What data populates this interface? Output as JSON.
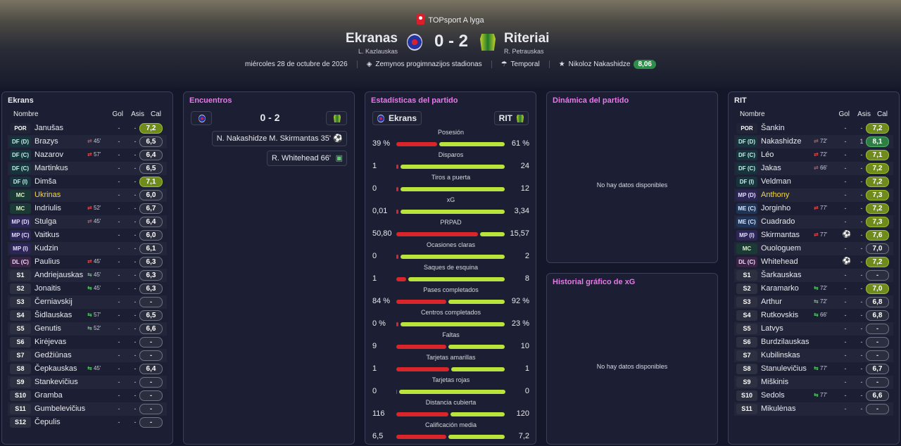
{
  "header": {
    "competition": "TOPsport A lyga",
    "home": {
      "name": "Ekranas",
      "coach": "L. Kazlauskas"
    },
    "away": {
      "name": "Riteriai",
      "coach": "R. Petrauskas"
    },
    "score": "0 - 2",
    "date": "miércoles 28 de octubre de 2026",
    "stadium": "Zemynos progimnazijos stadionas",
    "weather": "Temporal",
    "mvp_name": "Nikoloz Nakashidze",
    "mvp_rating": "8,06",
    "colors": {
      "mvp_badge": "#2e8e49",
      "home_bar": "#d9262a",
      "away_bar": "#b9e43c"
    }
  },
  "home_lineup": {
    "title": "Ekrans",
    "headers": {
      "name": "Nombre",
      "gol": "Gol",
      "asis": "Asis",
      "cal": "Cal"
    },
    "players": [
      {
        "pos": "POR",
        "posType": "g",
        "name": "Janušas",
        "sub": "",
        "subType": "",
        "gol": "-",
        "asis": "-",
        "cal": "7,2",
        "calType": "lime"
      },
      {
        "pos": "DF (D)",
        "posType": "d",
        "name": "Brazys",
        "sub": "45'",
        "subType": "out",
        "gol": "-",
        "asis": "-",
        "cal": "6,5",
        "calType": ""
      },
      {
        "pos": "DF (C)",
        "posType": "d",
        "name": "Nazarov",
        "sub": "57'",
        "subType": "out",
        "gol": "-",
        "asis": "-",
        "cal": "6,4",
        "calType": ""
      },
      {
        "pos": "DF (C)",
        "posType": "d",
        "name": "Martinkus",
        "sub": "",
        "subType": "",
        "gol": "-",
        "asis": "-",
        "cal": "6,5",
        "calType": ""
      },
      {
        "pos": "DF (I)",
        "posType": "d",
        "name": "Dimša",
        "sub": "",
        "subType": "",
        "gol": "-",
        "asis": "-",
        "cal": "7,1",
        "calType": "lime"
      },
      {
        "pos": "MC",
        "posType": "m",
        "name": "Ukrinas",
        "yellow": true,
        "sub": "",
        "subType": "",
        "gol": "-",
        "asis": "-",
        "cal": "6,0",
        "calType": ""
      },
      {
        "pos": "MC",
        "posType": "m",
        "name": "Indriulis",
        "sub": "52'",
        "subType": "out",
        "gol": "-",
        "asis": "-",
        "cal": "6,7",
        "calType": ""
      },
      {
        "pos": "MP (D)",
        "posType": "mp",
        "name": "Stulga",
        "sub": "45'",
        "subType": "out",
        "gol": "-",
        "asis": "-",
        "cal": "6,4",
        "calType": ""
      },
      {
        "pos": "MP (C)",
        "posType": "mp",
        "name": "Vaitkus",
        "sub": "",
        "subType": "",
        "gol": "-",
        "asis": "-",
        "cal": "6,0",
        "calType": ""
      },
      {
        "pos": "MP (I)",
        "posType": "mp",
        "name": "Kudzin",
        "sub": "",
        "subType": "",
        "gol": "-",
        "asis": "-",
        "cal": "6,1",
        "calType": ""
      },
      {
        "pos": "DL (C)",
        "posType": "dl",
        "name": "Paulius",
        "sub": "45'",
        "subType": "out",
        "gol": "-",
        "asis": "-",
        "cal": "6,3",
        "calType": ""
      },
      {
        "pos": "S1",
        "posType": "s",
        "name": "Andriejauskas",
        "sub": "45'",
        "subType": "in",
        "gol": "-",
        "asis": "-",
        "cal": "6,3",
        "calType": ""
      },
      {
        "pos": "S2",
        "posType": "s",
        "name": "Jonaitis",
        "sub": "45'",
        "subType": "in",
        "gol": "-",
        "asis": "-",
        "cal": "6,3",
        "calType": ""
      },
      {
        "pos": "S3",
        "posType": "s",
        "name": "Černiavskij",
        "sub": "",
        "subType": "",
        "gol": "-",
        "asis": "-",
        "cal": "-",
        "calType": "dash"
      },
      {
        "pos": "S4",
        "posType": "s",
        "name": "Šidlauskas",
        "sub": "57'",
        "subType": "in",
        "gol": "-",
        "asis": "-",
        "cal": "6,5",
        "calType": ""
      },
      {
        "pos": "S5",
        "posType": "s",
        "name": "Genutis",
        "sub": "52'",
        "subType": "in",
        "gol": "-",
        "asis": "-",
        "cal": "6,6",
        "calType": ""
      },
      {
        "pos": "S6",
        "posType": "s",
        "name": "Kirėjevas",
        "sub": "",
        "subType": "",
        "gol": "-",
        "asis": "-",
        "cal": "-",
        "calType": "dash"
      },
      {
        "pos": "S7",
        "posType": "s",
        "name": "Gedžiūnas",
        "sub": "",
        "subType": "",
        "gol": "-",
        "asis": "-",
        "cal": "-",
        "calType": "dash"
      },
      {
        "pos": "S8",
        "posType": "s",
        "name": "Čepkauskas",
        "sub": "45'",
        "subType": "in",
        "gol": "-",
        "asis": "-",
        "cal": "6,4",
        "calType": ""
      },
      {
        "pos": "S9",
        "posType": "s",
        "name": "Stankevičius",
        "sub": "",
        "subType": "",
        "gol": "-",
        "asis": "-",
        "cal": "-",
        "calType": "dash"
      },
      {
        "pos": "S10",
        "posType": "s",
        "name": "Gramba",
        "sub": "",
        "subType": "",
        "gol": "-",
        "asis": "-",
        "cal": "-",
        "calType": "dash"
      },
      {
        "pos": "S11",
        "posType": "s",
        "name": "Gumbelevičius",
        "sub": "",
        "subType": "",
        "gol": "-",
        "asis": "-",
        "cal": "-",
        "calType": "dash"
      },
      {
        "pos": "S12",
        "posType": "s",
        "name": "Čepulis",
        "sub": "",
        "subType": "",
        "gol": "-",
        "asis": "-",
        "cal": "-",
        "calType": "dash"
      }
    ]
  },
  "away_lineup": {
    "title": "RIT",
    "headers": {
      "name": "Nombre",
      "gol": "Gol",
      "asis": "Asis",
      "cal": "Cal"
    },
    "players": [
      {
        "pos": "POR",
        "posType": "g",
        "name": "Šankin",
        "sub": "",
        "subType": "",
        "gol": "-",
        "asis": "-",
        "cal": "7,2",
        "calType": "lime"
      },
      {
        "pos": "DF (D)",
        "posType": "d",
        "name": "Nakashidze",
        "sub": "72'",
        "subType": "out",
        "gol": "-",
        "asis": "1",
        "cal": "8,1",
        "calType": "green"
      },
      {
        "pos": "DF (C)",
        "posType": "d",
        "name": "Léo",
        "sub": "72'",
        "subType": "out",
        "gol": "-",
        "asis": "-",
        "cal": "7,1",
        "calType": "lime"
      },
      {
        "pos": "DF (C)",
        "posType": "d",
        "name": "Jakas",
        "sub": "66'",
        "subType": "out",
        "gol": "-",
        "asis": "-",
        "cal": "7,2",
        "calType": "lime"
      },
      {
        "pos": "DF (I)",
        "posType": "d",
        "name": "Veldman",
        "sub": "",
        "subType": "",
        "gol": "-",
        "asis": "-",
        "cal": "7,2",
        "calType": "lime"
      },
      {
        "pos": "MP (D)",
        "posType": "mp",
        "name": "Anthony",
        "yellow": true,
        "sub": "",
        "subType": "",
        "gol": "-",
        "asis": "-",
        "cal": "7,3",
        "calType": "lime"
      },
      {
        "pos": "ME (C)",
        "posType": "me",
        "name": "Jorginho",
        "sub": "77'",
        "subType": "out",
        "gol": "-",
        "asis": "-",
        "cal": "7,2",
        "calType": "lime"
      },
      {
        "pos": "ME (C)",
        "posType": "me",
        "name": "Cuadrado",
        "sub": "",
        "subType": "",
        "gol": "-",
        "asis": "-",
        "cal": "7,3",
        "calType": "lime"
      },
      {
        "pos": "MP (I)",
        "posType": "mp",
        "name": "Skirmantas",
        "sub": "77'",
        "subType": "out",
        "goal": true,
        "gol": "",
        "asis": "-",
        "cal": "7,6",
        "calType": "lime"
      },
      {
        "pos": "MC",
        "posType": "m",
        "name": "Ouologuem",
        "sub": "",
        "subType": "",
        "gol": "-",
        "asis": "-",
        "cal": "7,0",
        "calType": ""
      },
      {
        "pos": "DL (C)",
        "posType": "dl",
        "name": "Whitehead",
        "sub": "",
        "subType": "",
        "goal": true,
        "gol": "",
        "asis": "-",
        "cal": "7,2",
        "calType": "lime"
      },
      {
        "pos": "S1",
        "posType": "s",
        "name": "Šarkauskas",
        "sub": "",
        "subType": "",
        "gol": "-",
        "asis": "-",
        "cal": "-",
        "calType": "dash"
      },
      {
        "pos": "S2",
        "posType": "s",
        "name": "Karamarko",
        "sub": "72'",
        "subType": "in",
        "gol": "-",
        "asis": "-",
        "cal": "7,0",
        "calType": "lime"
      },
      {
        "pos": "S3",
        "posType": "s",
        "name": "Arthur",
        "sub": "72'",
        "subType": "in",
        "gol": "-",
        "asis": "-",
        "cal": "6,8",
        "calType": ""
      },
      {
        "pos": "S4",
        "posType": "s",
        "name": "Rutkovskis",
        "sub": "66'",
        "subType": "in",
        "gol": "-",
        "asis": "-",
        "cal": "6,8",
        "calType": ""
      },
      {
        "pos": "S5",
        "posType": "s",
        "name": "Latvys",
        "sub": "",
        "subType": "",
        "gol": "-",
        "asis": "-",
        "cal": "-",
        "calType": "dash"
      },
      {
        "pos": "S6",
        "posType": "s",
        "name": "Burdzilauskas",
        "sub": "",
        "subType": "",
        "gol": "-",
        "asis": "-",
        "cal": "-",
        "calType": "dash"
      },
      {
        "pos": "S7",
        "posType": "s",
        "name": "Kubilinskas",
        "sub": "",
        "subType": "",
        "gol": "-",
        "asis": "-",
        "cal": "-",
        "calType": "dash"
      },
      {
        "pos": "S8",
        "posType": "s",
        "name": "Stanulevičius",
        "sub": "77'",
        "subType": "in",
        "gol": "-",
        "asis": "-",
        "cal": "6,7",
        "calType": ""
      },
      {
        "pos": "S9",
        "posType": "s",
        "name": "Miškinis",
        "sub": "",
        "subType": "",
        "gol": "-",
        "asis": "-",
        "cal": "-",
        "calType": "dash"
      },
      {
        "pos": "S10",
        "posType": "s",
        "name": "Sedols",
        "sub": "77'",
        "subType": "in",
        "gol": "-",
        "asis": "-",
        "cal": "6,6",
        "calType": ""
      },
      {
        "pos": "S11",
        "posType": "s",
        "name": "Mikulėnas",
        "sub": "",
        "subType": "",
        "gol": "-",
        "asis": "-",
        "cal": "-",
        "calType": "dash"
      }
    ]
  },
  "encounters": {
    "title": "Encuentros",
    "score": "0 - 2",
    "events": [
      {
        "text": "N. Nakashidze M. Skirmantas 35'",
        "icon": "goal-ball-icon"
      },
      {
        "text": "R. Whitehead 66'",
        "icon": "goal-net-icon"
      }
    ]
  },
  "stats": {
    "title": "Estadísticas del partido",
    "home_label": "Ekrans",
    "away_label": "RIT",
    "rows": [
      {
        "label": "Posesión",
        "home": "39 %",
        "away": "61 %",
        "hv": 39,
        "av": 61
      },
      {
        "label": "Disparos",
        "home": "1",
        "away": "24",
        "hv": 1,
        "av": 24
      },
      {
        "label": "Tiros a puerta",
        "home": "0",
        "away": "12",
        "hv": 0,
        "av": 12
      },
      {
        "label": "xG",
        "home": "0,01",
        "away": "3,34",
        "hv": 0.01,
        "av": 3.34
      },
      {
        "label": "PRPAD",
        "home": "50,80",
        "away": "15,57",
        "hv": 50.8,
        "av": 15.57
      },
      {
        "label": "Ocasiones claras",
        "home": "0",
        "away": "2",
        "hv": 0,
        "av": 2
      },
      {
        "label": "Saques de esquina",
        "home": "1",
        "away": "8",
        "hv": 1,
        "av": 8
      },
      {
        "label": "Pases completados",
        "home": "84 %",
        "away": "92 %",
        "hv": 84,
        "av": 92
      },
      {
        "label": "Centros completados",
        "home": "0 %",
        "away": "23 %",
        "hv": 0,
        "av": 23
      },
      {
        "label": "Faltas",
        "home": "9",
        "away": "10",
        "hv": 9,
        "av": 10
      },
      {
        "label": "Tarjetas amarillas",
        "home": "1",
        "away": "1",
        "hv": 1,
        "av": 1
      },
      {
        "label": "Tarjetas rojas",
        "home": "0",
        "away": "0",
        "hv": 0,
        "av": 0
      },
      {
        "label": "Distancia cubierta",
        "home": "116",
        "away": "120",
        "hv": 116,
        "av": 120
      },
      {
        "label": "Calificación media",
        "home": "6,5",
        "away": "7,2",
        "hv": 6.5,
        "av": 7.2
      }
    ]
  },
  "dynamics": {
    "title": "Dinámica del partido",
    "empty": "No hay datos disponibles"
  },
  "xg_history": {
    "title": "Historial gráfico de xG",
    "empty": "No hay datos disponibles"
  }
}
